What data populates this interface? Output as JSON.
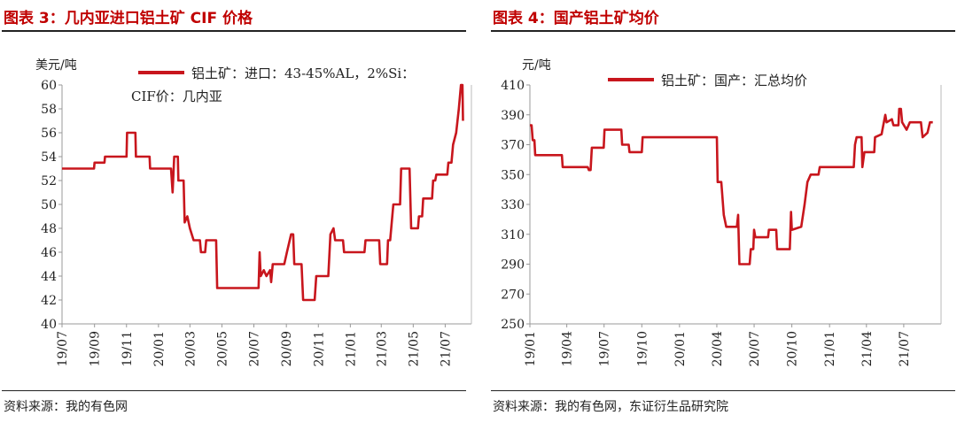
{
  "left": {
    "title": "图表 3：几内亚进口铝土矿 CIF 价格",
    "source": "资料来源：我的有色网"
  },
  "right": {
    "title": "图表 4：国产铝土矿均价",
    "source": "资料来源：我的有色网，东证衍生品研究院"
  },
  "colors": {
    "line": "#c8161d",
    "title": "#c00000"
  },
  "chart_data": [
    {
      "type": "line",
      "ylabel": "美元/吨",
      "ylim": [
        40,
        60
      ],
      "yticks": [
        40,
        42,
        44,
        46,
        48,
        50,
        52,
        54,
        56,
        58,
        60
      ],
      "xticks": [
        "19/07",
        "19/09",
        "19/11",
        "20/01",
        "20/03",
        "20/05",
        "20/07",
        "20/09",
        "20/11",
        "21/01",
        "21/03",
        "21/05",
        "21/07"
      ],
      "xlim": [
        "2019-07-01",
        "2021-08-20"
      ],
      "grid": false,
      "legend_position": "top",
      "series": [
        {
          "name_lines": [
            "铝土矿：进口：43-45%AL，2%Si：",
            "CIF价：几内亚"
          ],
          "points": [
            [
              "2019-07-01",
              53
            ],
            [
              "2019-08-31",
              53
            ],
            [
              "2019-09-01",
              53.5
            ],
            [
              "2019-09-20",
              53.5
            ],
            [
              "2019-09-21",
              54
            ],
            [
              "2019-11-01",
              54
            ],
            [
              "2019-11-02",
              56
            ],
            [
              "2019-11-18",
              56
            ],
            [
              "2019-11-19",
              54
            ],
            [
              "2019-12-15",
              54
            ],
            [
              "2019-12-16",
              53
            ],
            [
              "2020-01-25",
              53
            ],
            [
              "2020-01-28",
              51
            ],
            [
              "2020-01-31",
              54
            ],
            [
              "2020-02-07",
              54
            ],
            [
              "2020-02-08",
              52
            ],
            [
              "2020-02-18",
              52
            ],
            [
              "2020-02-20",
              48.5
            ],
            [
              "2020-02-25",
              49
            ],
            [
              "2020-03-01",
              48
            ],
            [
              "2020-03-08",
              47
            ],
            [
              "2020-03-20",
              47
            ],
            [
              "2020-03-22",
              46
            ],
            [
              "2020-03-30",
              46
            ],
            [
              "2020-04-01",
              47
            ],
            [
              "2020-04-20",
              47
            ],
            [
              "2020-04-22",
              43
            ],
            [
              "2020-07-10",
              43
            ],
            [
              "2020-07-12",
              46
            ],
            [
              "2020-07-14",
              44
            ],
            [
              "2020-07-20",
              44.5
            ],
            [
              "2020-07-25",
              44
            ],
            [
              "2020-08-01",
              44.5
            ],
            [
              "2020-08-03",
              43.5
            ],
            [
              "2020-08-06",
              45
            ],
            [
              "2020-08-28",
              45
            ],
            [
              "2020-09-02",
              46
            ],
            [
              "2020-09-10",
              47.5
            ],
            [
              "2020-09-14",
              47.5
            ],
            [
              "2020-09-16",
              45
            ],
            [
              "2020-09-30",
              45
            ],
            [
              "2020-10-03",
              42
            ],
            [
              "2020-10-25",
              42
            ],
            [
              "2020-10-28",
              44
            ],
            [
              "2020-11-20",
              44
            ],
            [
              "2020-11-24",
              47.5
            ],
            [
              "2020-11-30",
              48
            ],
            [
              "2020-12-03",
              47
            ],
            [
              "2020-12-18",
              47
            ],
            [
              "2020-12-20",
              46
            ],
            [
              "2021-01-28",
              46
            ],
            [
              "2021-01-30",
              47
            ],
            [
              "2021-02-25",
              47
            ],
            [
              "2021-02-27",
              45
            ],
            [
              "2021-03-12",
              45
            ],
            [
              "2021-03-14",
              47
            ],
            [
              "2021-03-18",
              47
            ],
            [
              "2021-03-20",
              48
            ],
            [
              "2021-03-24",
              50
            ],
            [
              "2021-04-06",
              50
            ],
            [
              "2021-04-08",
              53
            ],
            [
              "2021-04-24",
              53
            ],
            [
              "2021-04-27",
              48
            ],
            [
              "2021-05-10",
              48
            ],
            [
              "2021-05-12",
              49
            ],
            [
              "2021-05-18",
              49
            ],
            [
              "2021-05-20",
              50.5
            ],
            [
              "2021-06-06",
              50.5
            ],
            [
              "2021-06-08",
              52
            ],
            [
              "2021-06-12",
              52
            ],
            [
              "2021-06-14",
              52.5
            ],
            [
              "2021-07-05",
              52.5
            ],
            [
              "2021-07-07",
              53.5
            ],
            [
              "2021-07-13",
              53.5
            ],
            [
              "2021-07-16",
              55
            ],
            [
              "2021-07-22",
              56
            ],
            [
              "2021-07-27",
              58
            ],
            [
              "2021-07-31",
              60
            ],
            [
              "2021-08-03",
              60
            ],
            [
              "2021-08-04",
              57
            ]
          ]
        }
      ]
    },
    {
      "type": "line",
      "ylabel": "元/吨",
      "ylim": [
        250,
        410
      ],
      "yticks": [
        250,
        270,
        290,
        310,
        330,
        350,
        370,
        390,
        410
      ],
      "xticks": [
        "19/01",
        "19/04",
        "19/07",
        "19/10",
        "20/01",
        "20/04",
        "20/07",
        "20/10",
        "21/01",
        "21/04",
        "21/07"
      ],
      "xlim": [
        "2019-01-01",
        "2021-09-30"
      ],
      "grid": false,
      "legend_position": "top",
      "series": [
        {
          "name_lines": [
            "铝土矿：国产：汇总均价"
          ],
          "points": [
            [
              "2019-01-01",
              383
            ],
            [
              "2019-01-05",
              383
            ],
            [
              "2019-01-08",
              373
            ],
            [
              "2019-01-12",
              373
            ],
            [
              "2019-01-14",
              363
            ],
            [
              "2019-03-20",
              363
            ],
            [
              "2019-03-22",
              355
            ],
            [
              "2019-05-22",
              355
            ],
            [
              "2019-05-25",
              353
            ],
            [
              "2019-05-29",
              353
            ],
            [
              "2019-06-01",
              368
            ],
            [
              "2019-06-30",
              368
            ],
            [
              "2019-07-02",
              380
            ],
            [
              "2019-08-12",
              380
            ],
            [
              "2019-08-14",
              370
            ],
            [
              "2019-08-30",
              370
            ],
            [
              "2019-09-01",
              365
            ],
            [
              "2019-10-01",
              365
            ],
            [
              "2019-10-03",
              375
            ],
            [
              "2020-04-01",
              375
            ],
            [
              "2020-04-03",
              345
            ],
            [
              "2020-04-12",
              345
            ],
            [
              "2020-04-18",
              323
            ],
            [
              "2020-04-24",
              315
            ],
            [
              "2020-05-20",
              315
            ],
            [
              "2020-05-23",
              323
            ],
            [
              "2020-05-26",
              290
            ],
            [
              "2020-06-20",
              290
            ],
            [
              "2020-06-23",
              300
            ],
            [
              "2020-06-29",
              300
            ],
            [
              "2020-07-01",
              313
            ],
            [
              "2020-07-04",
              308
            ],
            [
              "2020-08-04",
              308
            ],
            [
              "2020-08-06",
              313
            ],
            [
              "2020-08-24",
              313
            ],
            [
              "2020-08-26",
              300
            ],
            [
              "2020-09-26",
              300
            ],
            [
              "2020-09-29",
              325
            ],
            [
              "2020-10-01",
              313
            ],
            [
              "2020-10-24",
              315
            ],
            [
              "2020-11-01",
              330
            ],
            [
              "2020-11-08",
              345
            ],
            [
              "2020-11-16",
              350
            ],
            [
              "2020-12-05",
              350
            ],
            [
              "2020-12-08",
              355
            ],
            [
              "2021-03-01",
              355
            ],
            [
              "2021-03-04",
              370
            ],
            [
              "2021-03-08",
              375
            ],
            [
              "2021-03-20",
              375
            ],
            [
              "2021-03-22",
              355
            ],
            [
              "2021-03-27",
              365
            ],
            [
              "2021-04-20",
              365
            ],
            [
              "2021-04-22",
              375
            ],
            [
              "2021-05-08",
              377
            ],
            [
              "2021-05-12",
              383
            ],
            [
              "2021-05-17",
              390
            ],
            [
              "2021-05-20",
              385
            ],
            [
              "2021-06-02",
              387
            ],
            [
              "2021-06-06",
              383
            ],
            [
              "2021-06-18",
              383
            ],
            [
              "2021-06-20",
              394
            ],
            [
              "2021-06-24",
              394
            ],
            [
              "2021-06-27",
              385
            ],
            [
              "2021-07-08",
              380
            ],
            [
              "2021-07-16",
              385
            ],
            [
              "2021-08-12",
              385
            ],
            [
              "2021-08-16",
              375
            ],
            [
              "2021-08-28",
              378
            ],
            [
              "2021-09-03",
              385
            ],
            [
              "2021-09-10",
              385
            ]
          ]
        }
      ]
    }
  ]
}
